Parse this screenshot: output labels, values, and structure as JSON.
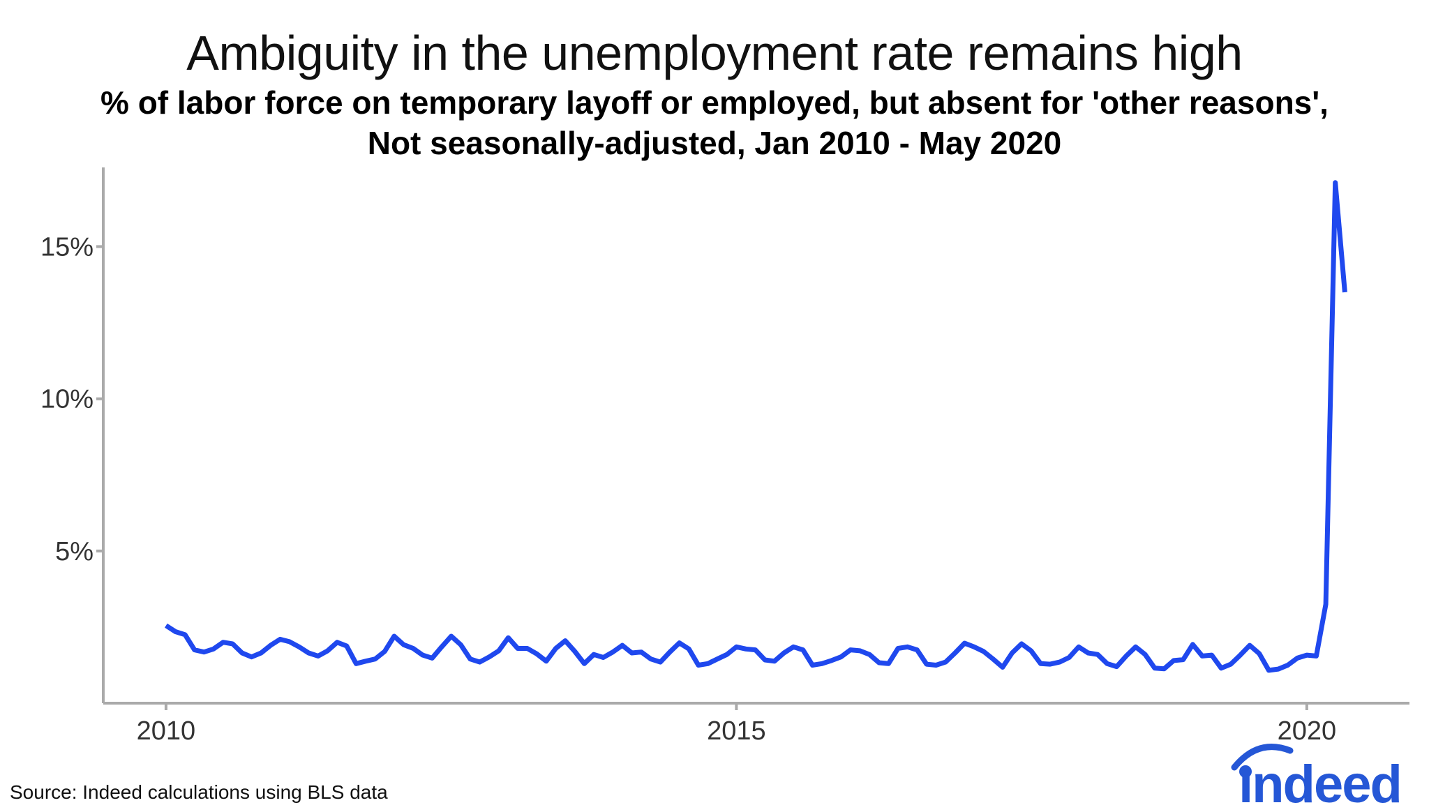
{
  "title": "Ambiguity in the unemployment rate remains high",
  "subtitle": {
    "line1": "% of labor force on temporary layoff or employed, but absent for 'other reasons',",
    "line2": "Not seasonally-adjusted, Jan 2010 - May 2020"
  },
  "source": "Source: Indeed calculations using BLS data",
  "logo_text": "indeed",
  "colors": {
    "line": "#1f48ee",
    "axis": "#aaaaaa",
    "logo": "#2557d6"
  },
  "chart_data": {
    "type": "line",
    "title": "Ambiguity in the unemployment rate remains high",
    "xlabel": "",
    "ylabel": "",
    "grid": false,
    "xlim": [
      2009.45,
      2020.9
    ],
    "ylim": [
      0,
      17.6
    ],
    "x_ticks": [
      2010,
      2015,
      2020
    ],
    "x_tick_labels": [
      "2010",
      "2015",
      "2020"
    ],
    "y_ticks": [
      5,
      10,
      15
    ],
    "y_tick_labels": [
      "5%",
      "10%",
      "15%"
    ],
    "series": [
      {
        "x_start": "Jan 2010",
        "x_end": "May 2020",
        "frequency": "monthly",
        "values": [
          2.55,
          2.35,
          2.25,
          1.75,
          1.68,
          1.78,
          2.0,
          1.95,
          1.65,
          1.52,
          1.65,
          1.9,
          2.1,
          2.02,
          1.85,
          1.65,
          1.55,
          1.72,
          2.0,
          1.88,
          1.3,
          1.38,
          1.45,
          1.7,
          2.2,
          1.92,
          1.8,
          1.58,
          1.48,
          1.85,
          2.2,
          1.92,
          1.45,
          1.35,
          1.52,
          1.72,
          2.15,
          1.8,
          1.8,
          1.62,
          1.38,
          1.8,
          2.05,
          1.7,
          1.3,
          1.6,
          1.5,
          1.68,
          1.9,
          1.65,
          1.68,
          1.45,
          1.35,
          1.68,
          1.98,
          1.78,
          1.25,
          1.3,
          1.45,
          1.6,
          1.85,
          1.78,
          1.75,
          1.42,
          1.38,
          1.65,
          1.85,
          1.75,
          1.25,
          1.3,
          1.4,
          1.52,
          1.75,
          1.72,
          1.6,
          1.33,
          1.3,
          1.8,
          1.85,
          1.75,
          1.28,
          1.25,
          1.35,
          1.65,
          1.97,
          1.85,
          1.7,
          1.45,
          1.18,
          1.65,
          1.95,
          1.72,
          1.3,
          1.28,
          1.35,
          1.5,
          1.85,
          1.65,
          1.6,
          1.3,
          1.2,
          1.55,
          1.85,
          1.6,
          1.15,
          1.13,
          1.4,
          1.43,
          1.93,
          1.55,
          1.58,
          1.15,
          1.28,
          1.58,
          1.9,
          1.63,
          1.08,
          1.12,
          1.25,
          1.48,
          1.58,
          1.55,
          3.25,
          17.1,
          13.5
        ]
      }
    ]
  }
}
